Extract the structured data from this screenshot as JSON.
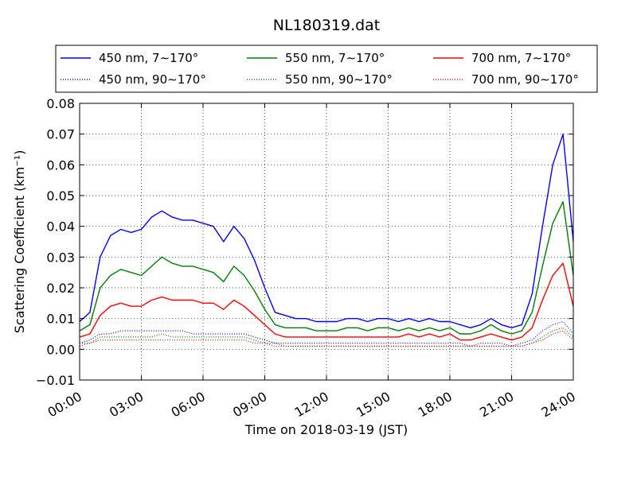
{
  "chart_data": {
    "type": "line",
    "title": "NL180319.dat",
    "xlabel": "Time on 2018-03-19 (JST)",
    "ylabel": "Scattering Coefficient (km⁻¹)",
    "xlim": [
      "00:00",
      "24:00"
    ],
    "ylim": [
      -0.01,
      0.08
    ],
    "x_ticks": [
      "00:00",
      "03:00",
      "06:00",
      "09:00",
      "12:00",
      "15:00",
      "18:00",
      "21:00",
      "24:00"
    ],
    "y_ticks": [
      "−0.01",
      "0.00",
      "0.01",
      "0.02",
      "0.03",
      "0.04",
      "0.05",
      "0.06",
      "0.07",
      "0.08"
    ],
    "grid": true,
    "legend": {
      "placement": "above-plot",
      "columns": 3
    },
    "x": [
      "00:00",
      "00:30",
      "01:00",
      "01:30",
      "02:00",
      "02:30",
      "03:00",
      "03:30",
      "04:00",
      "04:30",
      "05:00",
      "05:30",
      "06:00",
      "06:30",
      "07:00",
      "07:30",
      "08:00",
      "08:30",
      "09:00",
      "09:30",
      "10:00",
      "10:30",
      "11:00",
      "11:30",
      "12:00",
      "12:30",
      "13:00",
      "13:30",
      "14:00",
      "14:30",
      "15:00",
      "15:30",
      "16:00",
      "16:30",
      "17:00",
      "17:30",
      "18:00",
      "18:30",
      "19:00",
      "19:30",
      "20:00",
      "20:30",
      "21:00",
      "21:30",
      "22:00",
      "22:30",
      "23:00",
      "23:30",
      "24:00"
    ],
    "series": [
      {
        "name": "450 nm, 7∼170°",
        "color": "#0000ff",
        "style": "solid",
        "values": [
          0.009,
          0.012,
          0.03,
          0.037,
          0.039,
          0.038,
          0.039,
          0.043,
          0.045,
          0.043,
          0.042,
          0.042,
          0.041,
          0.04,
          0.035,
          0.04,
          0.036,
          0.029,
          0.02,
          0.012,
          0.011,
          0.01,
          0.01,
          0.009,
          0.009,
          0.009,
          0.01,
          0.01,
          0.009,
          0.01,
          0.01,
          0.009,
          0.01,
          0.009,
          0.01,
          0.009,
          0.009,
          0.008,
          0.007,
          0.008,
          0.01,
          0.008,
          0.007,
          0.008,
          0.018,
          0.04,
          0.06,
          0.07,
          0.035
        ]
      },
      {
        "name": "450 nm, 90∼170°",
        "color": "#0000ff",
        "style": "dotted",
        "values": [
          0.002,
          0.003,
          0.005,
          0.005,
          0.006,
          0.006,
          0.006,
          0.006,
          0.006,
          0.006,
          0.006,
          0.005,
          0.005,
          0.005,
          0.005,
          0.005,
          0.005,
          0.004,
          0.003,
          0.002,
          0.002,
          0.002,
          0.002,
          0.002,
          0.002,
          0.002,
          0.002,
          0.002,
          0.002,
          0.002,
          0.002,
          0.002,
          0.002,
          0.002,
          0.002,
          0.002,
          0.002,
          0.002,
          0.001,
          0.002,
          0.002,
          0.002,
          0.001,
          0.002,
          0.003,
          0.006,
          0.008,
          0.009,
          0.005
        ]
      },
      {
        "name": "550 nm, 7∼170°",
        "color": "#008000",
        "style": "solid",
        "values": [
          0.006,
          0.008,
          0.02,
          0.024,
          0.026,
          0.025,
          0.024,
          0.027,
          0.03,
          0.028,
          0.027,
          0.027,
          0.026,
          0.025,
          0.022,
          0.027,
          0.024,
          0.019,
          0.013,
          0.008,
          0.007,
          0.007,
          0.007,
          0.006,
          0.006,
          0.006,
          0.007,
          0.007,
          0.006,
          0.007,
          0.007,
          0.006,
          0.007,
          0.006,
          0.007,
          0.006,
          0.007,
          0.005,
          0.005,
          0.006,
          0.008,
          0.006,
          0.005,
          0.006,
          0.012,
          0.027,
          0.041,
          0.048,
          0.024
        ]
      },
      {
        "name": "550 nm, 90∼170°",
        "color": "#008000",
        "style": "dotted",
        "values": [
          0.002,
          0.002,
          0.004,
          0.004,
          0.004,
          0.004,
          0.004,
          0.004,
          0.005,
          0.004,
          0.004,
          0.004,
          0.004,
          0.004,
          0.004,
          0.004,
          0.004,
          0.003,
          0.002,
          0.002,
          0.001,
          0.001,
          0.001,
          0.001,
          0.001,
          0.001,
          0.001,
          0.001,
          0.001,
          0.001,
          0.001,
          0.001,
          0.001,
          0.001,
          0.001,
          0.001,
          0.001,
          0.001,
          0.001,
          0.001,
          0.001,
          0.001,
          0.001,
          0.001,
          0.002,
          0.004,
          0.006,
          0.007,
          0.004
        ]
      },
      {
        "name": "700 nm, 7∼170°",
        "color": "#ff0000",
        "style": "solid",
        "values": [
          0.004,
          0.005,
          0.011,
          0.014,
          0.015,
          0.014,
          0.014,
          0.016,
          0.017,
          0.016,
          0.016,
          0.016,
          0.015,
          0.015,
          0.013,
          0.016,
          0.014,
          0.011,
          0.008,
          0.005,
          0.004,
          0.004,
          0.004,
          0.004,
          0.004,
          0.004,
          0.004,
          0.004,
          0.004,
          0.004,
          0.004,
          0.004,
          0.005,
          0.004,
          0.005,
          0.004,
          0.005,
          0.003,
          0.003,
          0.004,
          0.005,
          0.004,
          0.003,
          0.004,
          0.007,
          0.016,
          0.024,
          0.028,
          0.014
        ]
      },
      {
        "name": "700 nm, 90∼170°",
        "color": "#ff0000",
        "style": "dotted",
        "values": [
          0.001,
          0.002,
          0.003,
          0.003,
          0.003,
          0.003,
          0.003,
          0.003,
          0.003,
          0.003,
          0.003,
          0.003,
          0.003,
          0.003,
          0.003,
          0.003,
          0.003,
          0.002,
          0.002,
          0.001,
          0.001,
          0.001,
          0.001,
          0.001,
          0.001,
          0.001,
          0.001,
          0.001,
          0.001,
          0.001,
          0.001,
          0.001,
          0.001,
          0.001,
          0.001,
          0.001,
          0.001,
          0.001,
          0.001,
          0.001,
          0.001,
          0.001,
          0.001,
          0.001,
          0.002,
          0.003,
          0.005,
          0.006,
          0.003
        ]
      }
    ]
  }
}
